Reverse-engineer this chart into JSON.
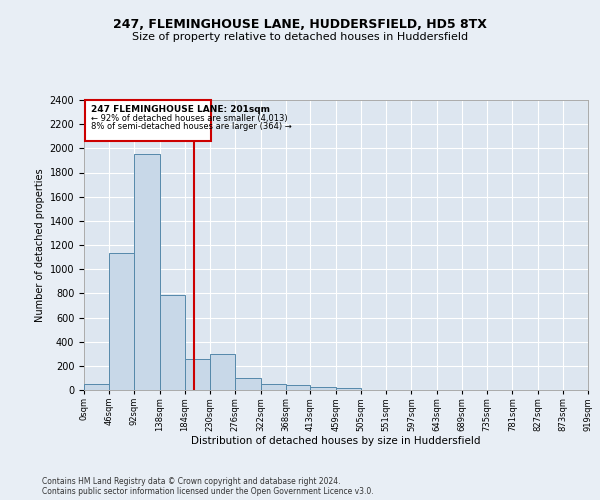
{
  "title1": "247, FLEMINGHOUSE LANE, HUDDERSFIELD, HD5 8TX",
  "title2": "Size of property relative to detached houses in Huddersfield",
  "xlabel": "Distribution of detached houses by size in Huddersfield",
  "ylabel": "Number of detached properties",
  "footnote1": "Contains HM Land Registry data © Crown copyright and database right 2024.",
  "footnote2": "Contains public sector information licensed under the Open Government Licence v3.0.",
  "annotation_line1": "247 FLEMINGHOUSE LANE: 201sqm",
  "annotation_line2": "← 92% of detached houses are smaller (4,013)",
  "annotation_line3": "8% of semi-detached houses are larger (364) →",
  "property_size": 201,
  "bin_edges": [
    0,
    46,
    92,
    138,
    184,
    230,
    276,
    322,
    368,
    413,
    459,
    505,
    551,
    597,
    643,
    689,
    735,
    781,
    827,
    873,
    919
  ],
  "bar_heights": [
    50,
    1130,
    1950,
    790,
    260,
    295,
    100,
    50,
    40,
    25,
    15,
    0,
    0,
    0,
    0,
    0,
    0,
    0,
    0,
    0
  ],
  "bar_color": "#c8d8e8",
  "bar_edge_color": "#5588aa",
  "vline_color": "#cc0000",
  "vline_x": 201,
  "box_color": "#cc0000",
  "ylim": [
    0,
    2400
  ],
  "xlim": [
    0,
    919
  ],
  "background_color": "#e8eef5",
  "plot_bg_color": "#dde6f0",
  "title_fontsize": 9,
  "subtitle_fontsize": 8,
  "ylabel_fontsize": 7,
  "xlabel_fontsize": 7.5,
  "ytick_fontsize": 7,
  "xtick_fontsize": 6,
  "footnote_fontsize": 5.5
}
